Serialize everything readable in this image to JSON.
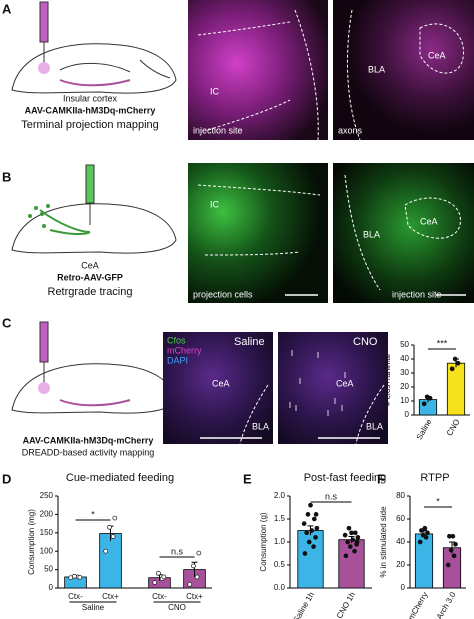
{
  "figure": {
    "a": {
      "letter": "A",
      "caption": [
        "Insular cortex",
        "AAV-CAMKIIa-hM3Dq-mCherry",
        "Terminal projection mapping"
      ],
      "images": [
        {
          "labels": [
            "IC"
          ],
          "caption": "injection site"
        },
        {
          "labels": [
            "BLA",
            "CeA"
          ],
          "caption": "axons"
        }
      ]
    },
    "b": {
      "letter": "B",
      "caption": [
        "CeA",
        "Retro-AAV-GFP",
        "Retrgrade tracing"
      ],
      "images": [
        {
          "labels": [
            "IC"
          ],
          "caption": "projection cells"
        },
        {
          "labels": [
            "BLA",
            "CeA"
          ],
          "caption": "injection site"
        }
      ]
    },
    "c": {
      "letter": "C",
      "caption": [
        "AAV-CAMKIIa-hM3Dq-mCherry",
        "DREADD-based activity mapping"
      ],
      "legend": [
        "Cfos",
        "mCherry",
        "DAPI"
      ],
      "images": [
        {
          "title": "Saline",
          "labels": [
            "CeA",
            "BLA"
          ]
        },
        {
          "title": "CNO",
          "labels": [
            "CeA",
            "BLA"
          ]
        }
      ]
    },
    "d": {
      "letter": "D"
    },
    "e": {
      "letter": "E"
    },
    "f": {
      "letter": "F"
    }
  },
  "chart_data": [
    {
      "type": "bar",
      "ylabel": "# cfos+/animal",
      "categories": [
        "Saline",
        "CNO"
      ],
      "values": [
        11,
        37
      ],
      "errors": [
        2,
        3
      ],
      "colors": [
        "#3cb4e6",
        "#f5e11e"
      ],
      "points": [
        [
          8,
          12,
          13
        ],
        [
          33,
          37,
          40
        ]
      ],
      "ylim": [
        0,
        50
      ],
      "yticks": [
        0,
        10,
        20,
        30,
        40,
        50
      ],
      "annotations": [
        "***"
      ]
    },
    {
      "type": "bar",
      "title": "Cue-mediated feeding",
      "ylabel": "Consumption (mg)",
      "categories": [
        "Ctx-",
        "Ctx+",
        "Ctx-",
        "Ctx+"
      ],
      "group_labels": [
        "Saline",
        "CNO"
      ],
      "values": [
        30,
        148,
        28,
        50
      ],
      "errors": [
        2,
        20,
        8,
        20
      ],
      "colors": [
        "#3cb4e6",
        "#3cb4e6",
        "#a8509a",
        "#a8509a"
      ],
      "points": [
        [
          28,
          30,
          32,
          29
        ],
        [
          100,
          140,
          165,
          190
        ],
        [
          15,
          25,
          40,
          30
        ],
        [
          10,
          30,
          60,
          95
        ]
      ],
      "ylim": [
        0,
        250
      ],
      "yticks": [
        0,
        50,
        100,
        150,
        200,
        250
      ],
      "annotations": [
        "*",
        "n.s"
      ]
    },
    {
      "type": "bar",
      "title": "Post-fast feeding",
      "ylabel": "Consumption (g)",
      "categories": [
        "Saline 1h",
        "CNO 1h"
      ],
      "values": [
        1.25,
        1.05
      ],
      "errors": [
        0.1,
        0.07
      ],
      "colors": [
        "#3cb4e6",
        "#a8509a"
      ],
      "points": [
        [
          0.75,
          0.9,
          1.0,
          1.1,
          1.2,
          1.25,
          1.3,
          1.4,
          1.5,
          1.6,
          1.8,
          1.6
        ],
        [
          0.7,
          0.8,
          0.9,
          0.95,
          1.0,
          1.05,
          1.1,
          1.15,
          1.2,
          1.3,
          1.2,
          1.0
        ]
      ],
      "ylim": [
        0,
        2
      ],
      "yticks": [
        {
          "value": 0,
          "label": "0.0"
        },
        0.5,
        {
          "value": 1,
          "label": "1.0"
        },
        1.5,
        {
          "value": 2,
          "label": "2.0"
        }
      ],
      "annotations": [
        "n.s"
      ]
    },
    {
      "type": "bar",
      "title": "RTPP",
      "ylabel": "% in stimulated side",
      "categories": [
        "mCherry",
        "Arch 3.0"
      ],
      "values": [
        47,
        35
      ],
      "errors": [
        3,
        5
      ],
      "colors": [
        "#3cb4e6",
        "#a8509a"
      ],
      "points": [
        [
          40,
          44,
          46,
          48,
          50,
          52
        ],
        [
          20,
          28,
          33,
          38,
          45,
          45
        ]
      ],
      "ylim": [
        0,
        80
      ],
      "yticks": [
        0,
        20,
        40,
        60,
        80
      ],
      "annotations": [
        "*"
      ]
    }
  ]
}
